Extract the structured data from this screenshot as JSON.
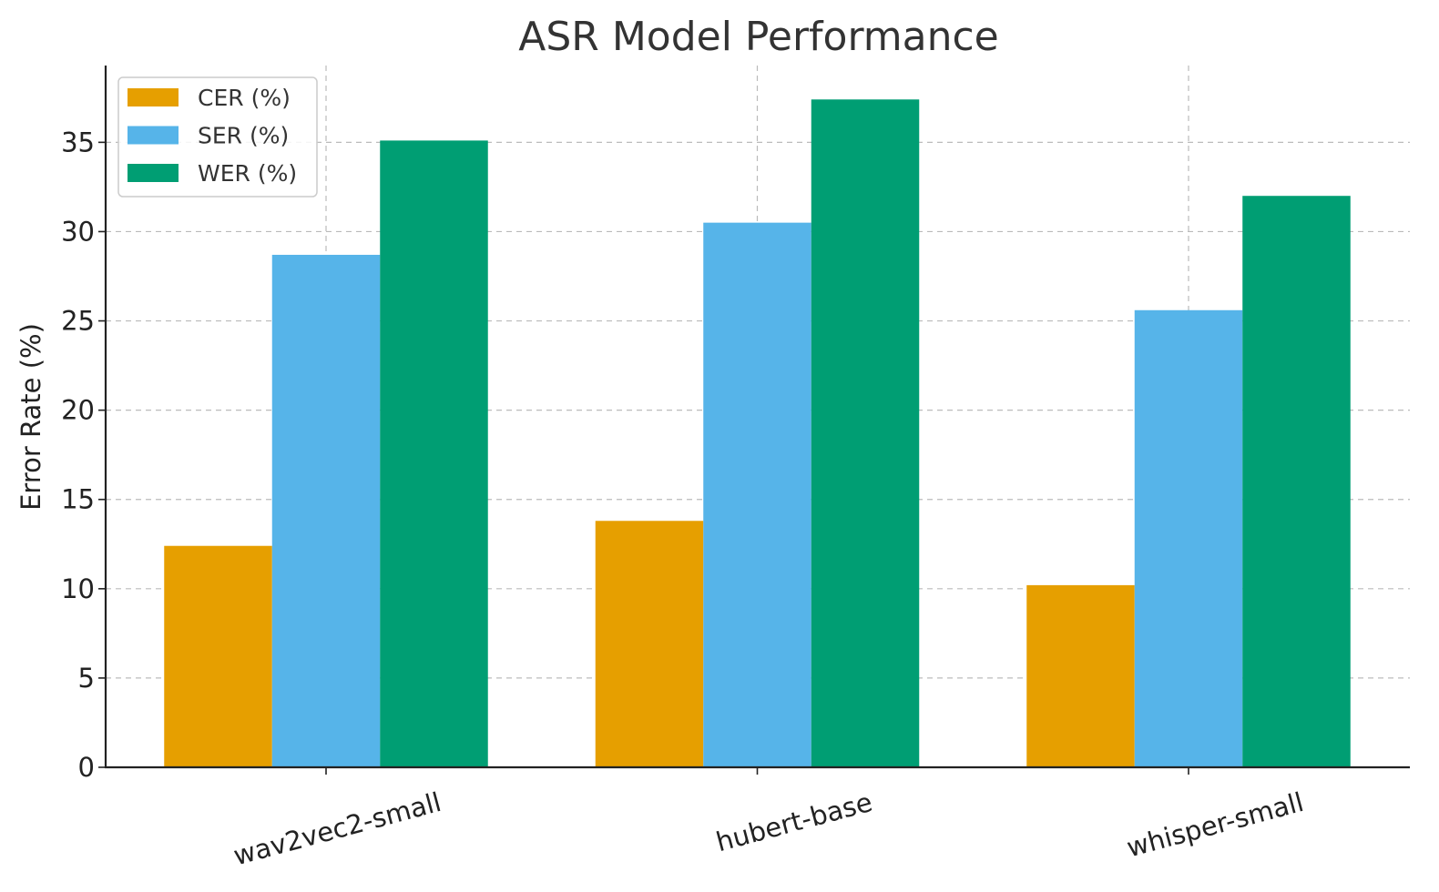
{
  "chart_data": {
    "type": "bar",
    "title": "ASR Model Performance",
    "xlabel": "",
    "ylabel": "Error Rate (%)",
    "categories": [
      "wav2vec2-small",
      "hubert-base",
      "whisper-small"
    ],
    "series": [
      {
        "name": "CER (%)",
        "values": [
          12.4,
          13.8,
          10.2
        ],
        "color": "#E69F00"
      },
      {
        "name": "SER (%)",
        "values": [
          28.7,
          30.5,
          25.6
        ],
        "color": "#56B4E9"
      },
      {
        "name": "WER (%)",
        "values": [
          35.1,
          37.4,
          32.0
        ],
        "color": "#009E73"
      }
    ],
    "ylim": [
      0,
      39.3
    ],
    "yticks": [
      "0",
      "5",
      "10",
      "15",
      "20",
      "25",
      "30",
      "35"
    ],
    "grid": true,
    "legend_position": "top-left"
  }
}
